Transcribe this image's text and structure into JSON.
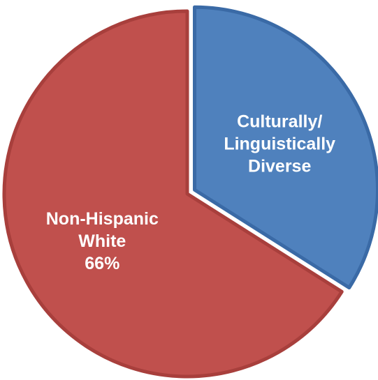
{
  "chart_data": {
    "type": "pie",
    "title": "",
    "start_angle_deg": 0,
    "direction": "clockwise",
    "slices": [
      {
        "label_lines": [
          "Culturally/",
          "Linguistically",
          "Diverse"
        ],
        "value": 34,
        "value_label": "",
        "color": "#4f81bd",
        "edge_color": "#3a6aa6",
        "exploded": true
      },
      {
        "label_lines": [
          "Non-Hispanic",
          "White",
          "66%"
        ],
        "value": 66,
        "value_label": "66%",
        "color": "#c0504d",
        "edge_color": "#a83f3c",
        "exploded": false
      }
    ]
  }
}
